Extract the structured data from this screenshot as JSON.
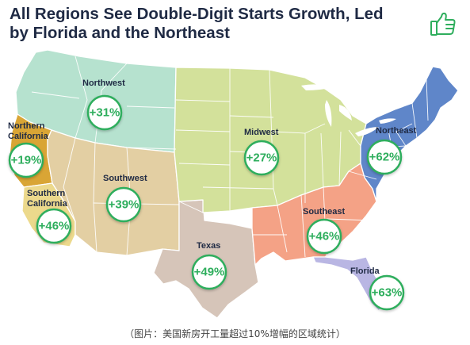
{
  "title": {
    "line1": "All Regions See Double-Digit Starts Growth, Led",
    "line2": "by Florida and the Northeast"
  },
  "icon": "thumbs-up-icon",
  "caption": "（图片：美国新房开工量超过10%增幅的区域统计）",
  "colors": {
    "northwest": "#b6e2cf",
    "northern_california": "#d9a535",
    "southern_california": "#ecd98c",
    "southwest": "#e3cfa3",
    "texas": "#d6c5b9",
    "midwest": "#d3e19b",
    "southeast": "#f4a286",
    "florida": "#b9b6e3",
    "northeast": "#5f86c9",
    "bubble": "#2fae5d",
    "title": "#1f2a44"
  },
  "regions": [
    {
      "id": "northwest",
      "name": "Northwest",
      "growth": "+31%"
    },
    {
      "id": "northern_california",
      "name": "Northern California",
      "growth": "+19%"
    },
    {
      "id": "southern_california",
      "name": "Southern California",
      "growth": "+46%"
    },
    {
      "id": "southwest",
      "name": "Southwest",
      "growth": "+39%"
    },
    {
      "id": "texas",
      "name": "Texas",
      "growth": "+49%"
    },
    {
      "id": "midwest",
      "name": "Midwest",
      "growth": "+27%"
    },
    {
      "id": "southeast",
      "name": "Southeast",
      "growth": "+46%"
    },
    {
      "id": "florida",
      "name": "Florida",
      "growth": "+63%"
    },
    {
      "id": "northeast",
      "name": "Northeast",
      "growth": "+62%"
    }
  ]
}
